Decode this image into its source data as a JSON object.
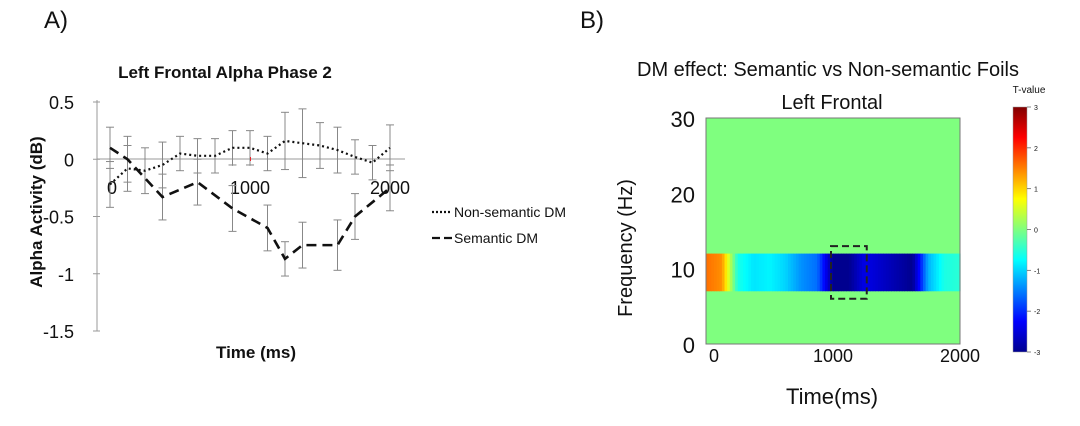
{
  "chart_data": [
    {
      "panel_label": "A)",
      "type": "line",
      "title": "Left Frontal Alpha Phase 2",
      "xlabel": "Time (ms)",
      "ylabel": "Alpha Activity (dB)",
      "xlim": [
        0,
        2000
      ],
      "ylim": [
        -1.5,
        0.5
      ],
      "yticks": [
        "0.5",
        "0",
        "-0.5",
        "-1",
        "-1.5"
      ],
      "xticks": [
        "0",
        "1000",
        "2000"
      ],
      "x": [
        0,
        125,
        250,
        375,
        500,
        625,
        750,
        875,
        1000,
        1125,
        1250,
        1375,
        1500,
        1625,
        1750,
        1875,
        2000
      ],
      "series": [
        {
          "name": "Non-semantic DM",
          "style": "dotted",
          "values": [
            -0.22,
            -0.08,
            -0.1,
            -0.05,
            0.05,
            0.03,
            0.03,
            0.1,
            0.1,
            0.05,
            0.16,
            0.14,
            0.12,
            0.08,
            0.02,
            -0.03,
            0.1
          ],
          "errors": [
            0.2,
            0.2,
            0.2,
            0.2,
            0.15,
            0.15,
            0.15,
            0.15,
            0.15,
            0.15,
            0.25,
            0.3,
            0.2,
            0.2,
            0.15,
            0.15,
            0.2
          ]
        },
        {
          "name": "Semantic DM",
          "style": "dashed",
          "values": [
            0.1,
            0.0,
            -0.33,
            -0.2,
            -0.43,
            -0.6,
            -0.87,
            -0.75,
            -0.75,
            -0.5,
            -0.25
          ],
          "x": [
            0,
            125,
            375,
            625,
            875,
            1125,
            1250,
            1375,
            1625,
            1750,
            2000
          ],
          "errors": [
            0.18,
            0.2,
            0.2,
            0.2,
            0.2,
            0.2,
            0.15,
            0.2,
            0.22,
            0.2,
            0.2
          ]
        }
      ],
      "significance_bar": {
        "x_start": 1000,
        "x_end": 1250,
        "color": "#e8252b"
      },
      "legend_position": "right"
    },
    {
      "panel_label": "B)",
      "type": "heatmap",
      "title": "DM effect: Semantic vs Non-semantic Foils",
      "subtitle": "Left Frontal",
      "xlabel": "Time(ms)",
      "ylabel": "Frequency (Hz)",
      "xlim": [
        0,
        2000
      ],
      "ylim": [
        0,
        30
      ],
      "xticks": [
        "0",
        "1000",
        "2000"
      ],
      "yticks": [
        "0",
        "10",
        "20",
        "30"
      ],
      "background_value": 0,
      "band": {
        "freq_low": 7,
        "freq_high": 12
      },
      "band_time": [
        0,
        125,
        250,
        375,
        500,
        625,
        750,
        875,
        1000,
        1125,
        1250,
        1375,
        1500,
        1625,
        1750,
        1875,
        2000
      ],
      "band_values": [
        1.6,
        1.4,
        -0.6,
        -0.9,
        -0.8,
        -1.0,
        -1.4,
        -1.6,
        -3.0,
        -3.0,
        -2.4,
        -2.6,
        -2.8,
        -3.0,
        -1.2,
        -0.6,
        -0.5
      ],
      "roi_box": {
        "time_start": 1000,
        "time_end": 1250,
        "freq_low": 6,
        "freq_high": 13
      },
      "colorbar": {
        "label": "T-value",
        "min": -3,
        "max": 3,
        "ticks": [
          "3",
          "2",
          "1",
          "0",
          "-1",
          "-2",
          "-3"
        ]
      }
    }
  ]
}
